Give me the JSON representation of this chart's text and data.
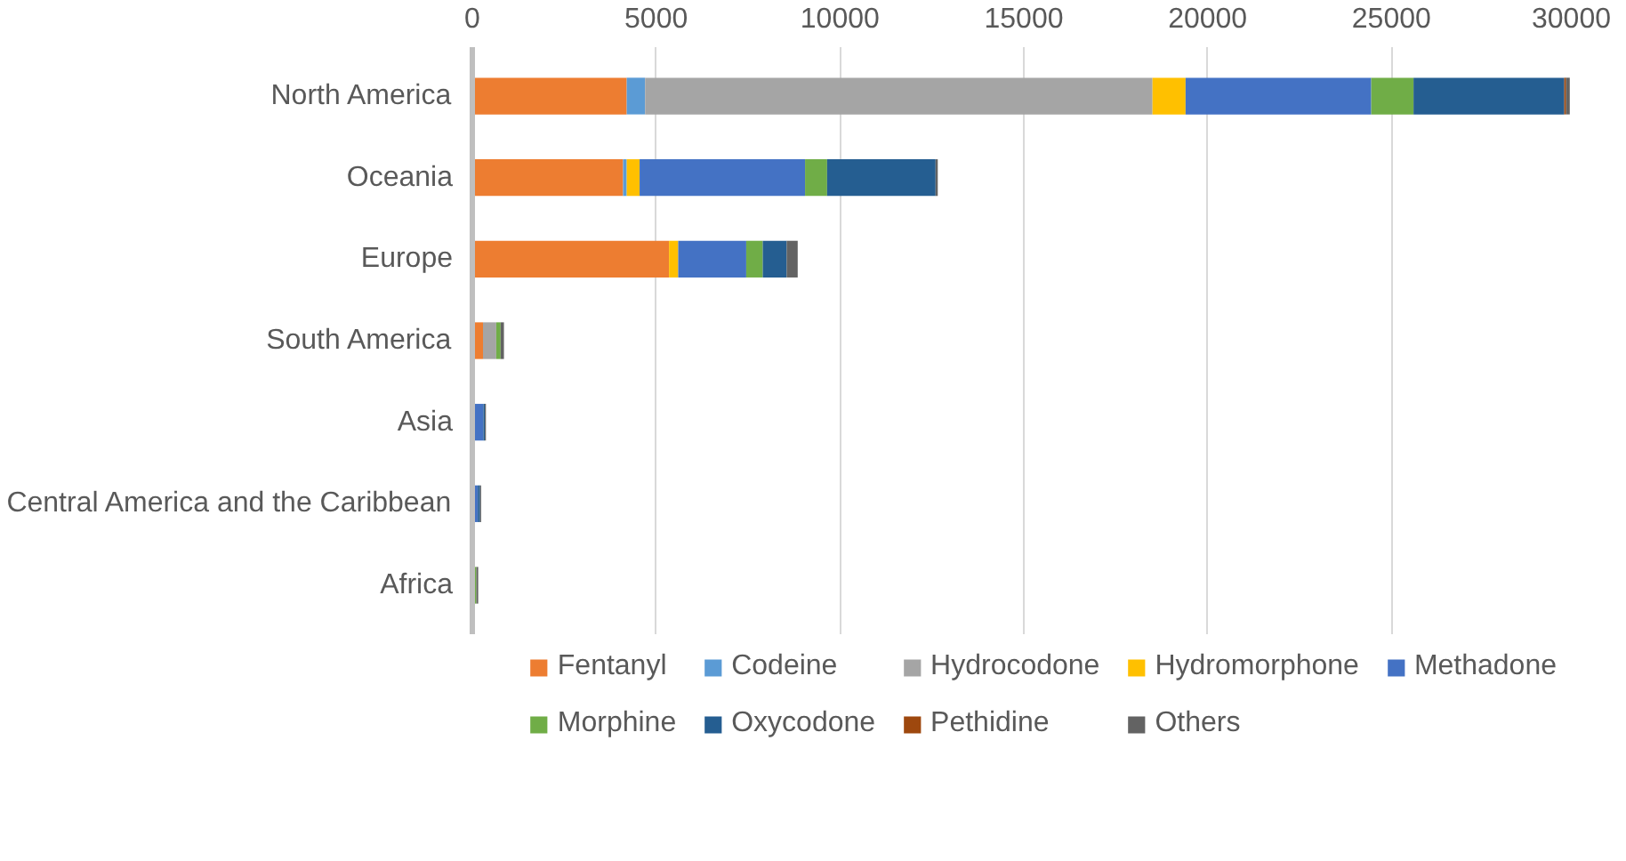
{
  "chart_data": {
    "type": "bar",
    "orientation": "horizontal",
    "stacked": true,
    "categories": [
      "North America",
      "Oceania",
      "Europe",
      "South America",
      "Asia",
      "Central America and the Caribbean",
      "Africa"
    ],
    "series": [
      {
        "name": "Fentanyl",
        "color": "#ed7d31",
        "values": [
          4200,
          4100,
          5350,
          290,
          null,
          null,
          30
        ]
      },
      {
        "name": "Codeine",
        "color": "#5b9bd5",
        "values": [
          500,
          100,
          0,
          0,
          0,
          0,
          0
        ]
      },
      {
        "name": "Hydrocodone",
        "color": "#a5a5a5",
        "values": [
          13800,
          0,
          0,
          360,
          0,
          0,
          0
        ]
      },
      {
        "name": "Hydromorphone",
        "color": "#ffc000",
        "values": [
          900,
          350,
          250,
          0,
          0,
          0,
          0
        ]
      },
      {
        "name": "Methadone",
        "color": "#4472c4",
        "values": [
          5050,
          4500,
          1850,
          0,
          300,
          150,
          0
        ]
      },
      {
        "name": "Morphine",
        "color": "#70ad47",
        "values": [
          1150,
          600,
          450,
          120,
          0,
          0,
          80
        ]
      },
      {
        "name": "Oxycodone",
        "color": "#255e91",
        "values": [
          4100,
          2950,
          650,
          0,
          40,
          60,
          0
        ]
      },
      {
        "name": "Pethidine",
        "color": "#9e480e",
        "values": [
          50,
          0,
          0,
          0,
          0,
          0,
          0
        ]
      },
      {
        "name": "Others",
        "color": "#636363",
        "values": [
          100,
          60,
          300,
          90,
          30,
          30,
          50
        ]
      }
    ],
    "xlim": [
      0,
      30000
    ],
    "xticks": [
      0,
      5000,
      10000,
      15000,
      20000,
      25000,
      30000
    ],
    "grid": "x",
    "legend": "bottom"
  }
}
